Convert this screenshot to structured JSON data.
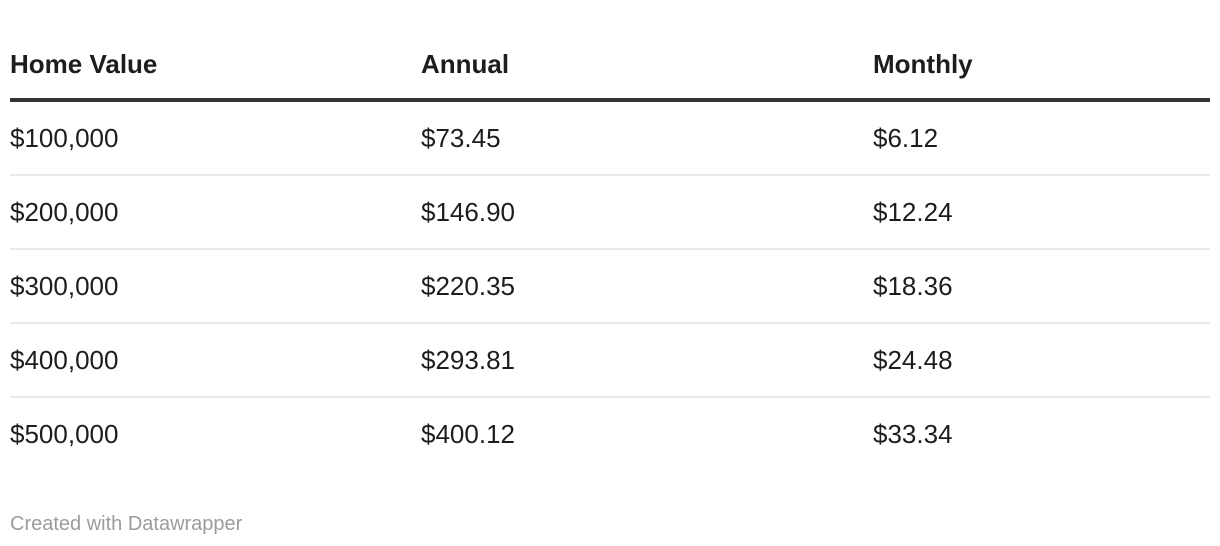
{
  "chart_data": {
    "type": "table",
    "columns": [
      "Home Value",
      "Annual",
      "Monthly"
    ],
    "rows": [
      [
        "$100,000",
        "$73.45",
        "$6.12"
      ],
      [
        "$200,000",
        "$146.90",
        "$12.24"
      ],
      [
        "$300,000",
        "$220.35",
        "$18.36"
      ],
      [
        "$400,000",
        "$293.81",
        "$24.48"
      ],
      [
        "$500,000",
        "$400.12",
        "$33.34"
      ]
    ],
    "home_values_numeric": [
      100000,
      200000,
      300000,
      400000,
      500000
    ],
    "annual_numeric": [
      73.45,
      146.9,
      220.35,
      293.81,
      400.12
    ],
    "monthly_numeric": [
      6.12,
      12.24,
      18.36,
      24.48,
      33.34
    ],
    "title": "",
    "grid": "horizontal-row-dividers",
    "header_style": "bold-with-thick-underline"
  },
  "footer": {
    "attribution": "Created with Datawrapper"
  },
  "colors": {
    "text": "#1d1d1d",
    "header_border": "#333333",
    "row_border": "#e9e9e9",
    "footer_text": "#9c9c9c",
    "background": "#ffffff"
  }
}
